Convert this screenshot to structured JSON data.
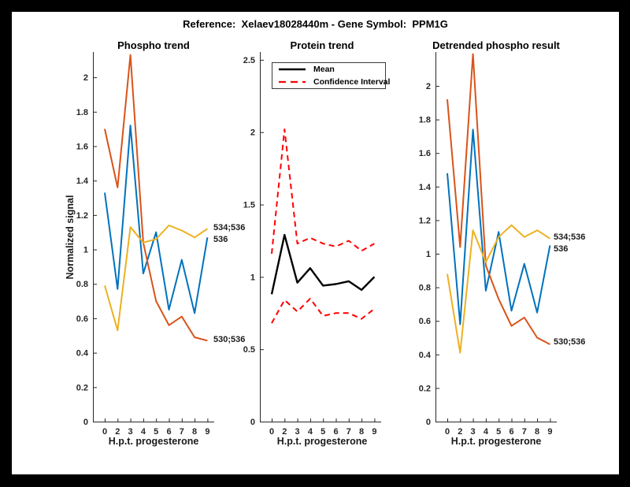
{
  "figure": {
    "suptitle": "Reference:  Xelaev18028440m - Gene Symbol:  PPM1G"
  },
  "colors": {
    "blue": "#0072BD",
    "orange": "#D95319",
    "yellow": "#EDB120",
    "red": "#FF0000",
    "black": "#000000",
    "axis": "#262626",
    "background": "#000000",
    "paper": "#FFFFFF"
  },
  "chart_data": [
    {
      "type": "line",
      "title": "Phospho trend",
      "xlabel": "H.p.t. progesterone",
      "ylabel": "Normalized signal",
      "x_tick_labels": [
        "0",
        "2",
        "3",
        "4",
        "5",
        "6",
        "7",
        "8",
        "9"
      ],
      "ylim": [
        0,
        2.147
      ],
      "yticks": [
        0,
        0.2,
        0.4,
        0.6,
        0.8,
        1,
        1.2,
        1.4,
        1.6,
        1.8,
        2
      ],
      "grid": false,
      "series": [
        {
          "name": "536",
          "color": "blue",
          "dashed": false,
          "end_label": "536",
          "values": [
            1.33,
            0.77,
            1.72,
            0.86,
            1.1,
            0.65,
            0.94,
            0.63,
            1.07
          ]
        },
        {
          "name": "530;536",
          "color": "orange",
          "dashed": false,
          "end_label": "530;536",
          "values": [
            1.7,
            1.36,
            2.13,
            1.04,
            0.7,
            0.56,
            0.61,
            0.49,
            0.47
          ]
        },
        {
          "name": "534;536",
          "color": "yellow",
          "dashed": false,
          "end_label": "534;536",
          "values": [
            0.79,
            0.53,
            1.13,
            1.04,
            1.06,
            1.14,
            1.11,
            1.07,
            1.12
          ]
        }
      ]
    },
    {
      "type": "line",
      "title": "Protein trend",
      "xlabel": "H.p.t. progesterone",
      "ylabel": "",
      "x_tick_labels": [
        "0",
        "2",
        "3",
        "4",
        "5",
        "6",
        "7",
        "8",
        "9"
      ],
      "ylim": [
        0,
        2.554
      ],
      "yticks": [
        0,
        0.5,
        1,
        1.5,
        2,
        2.5
      ],
      "grid": false,
      "legend": {
        "position": "northwest",
        "entries": [
          "Mean",
          "Confidence Interval"
        ]
      },
      "series": [
        {
          "name": "Confidence Interval upper",
          "color": "red",
          "dashed": true,
          "values": [
            1.16,
            2.02,
            1.23,
            1.27,
            1.23,
            1.21,
            1.25,
            1.18,
            1.23
          ]
        },
        {
          "name": "Confidence Interval lower",
          "color": "red",
          "dashed": true,
          "values": [
            0.68,
            0.84,
            0.76,
            0.85,
            0.73,
            0.75,
            0.75,
            0.71,
            0.78
          ]
        },
        {
          "name": "Mean",
          "color": "black",
          "dashed": false,
          "width": 2.4,
          "values": [
            0.88,
            1.29,
            0.96,
            1.06,
            0.94,
            0.95,
            0.97,
            0.91,
            1.0
          ]
        }
      ]
    },
    {
      "type": "line",
      "title": "Detrended phospho result",
      "xlabel": "H.p.t. progesterone",
      "ylabel": "",
      "x_tick_labels": [
        "0",
        "2",
        "3",
        "4",
        "5",
        "6",
        "7",
        "8",
        "9"
      ],
      "ylim": [
        0,
        2.202
      ],
      "yticks": [
        0,
        0.2,
        0.4,
        0.6,
        0.8,
        1,
        1.2,
        1.4,
        1.6,
        1.8,
        2
      ],
      "grid": false,
      "series": [
        {
          "name": "536",
          "color": "blue",
          "dashed": false,
          "end_label": "536",
          "values": [
            1.48,
            0.58,
            1.74,
            0.78,
            1.13,
            0.66,
            0.94,
            0.65,
            1.05
          ]
        },
        {
          "name": "530;536",
          "color": "orange",
          "dashed": false,
          "end_label": "530;536",
          "values": [
            1.92,
            1.04,
            2.19,
            0.93,
            0.73,
            0.57,
            0.62,
            0.5,
            0.46
          ]
        },
        {
          "name": "534;536",
          "color": "yellow",
          "dashed": false,
          "end_label": "534;536",
          "values": [
            0.88,
            0.41,
            1.14,
            0.95,
            1.1,
            1.17,
            1.1,
            1.14,
            1.09
          ]
        }
      ]
    }
  ]
}
